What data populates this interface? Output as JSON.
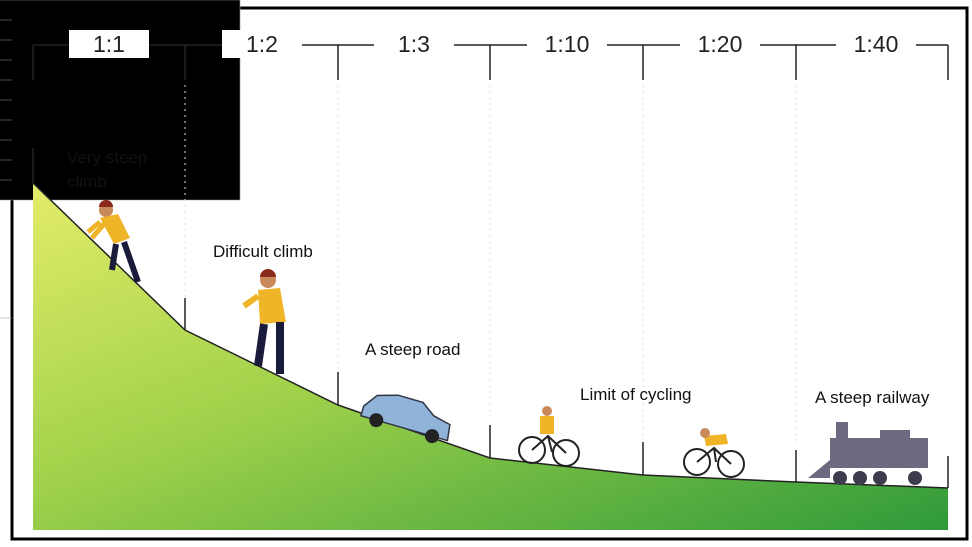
{
  "ratios": [
    "1:1",
    "1:2",
    "1:3",
    "1:10",
    "1:20",
    "1:40"
  ],
  "labels": [
    "Very steep climb",
    "Difficult climb",
    "A steep road",
    "Limit of cycling",
    "A steep railway"
  ]
}
